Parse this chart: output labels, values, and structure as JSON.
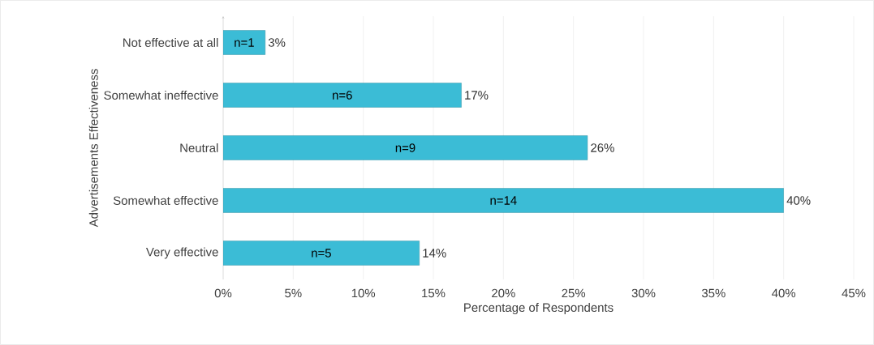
{
  "chart_data": {
    "type": "bar",
    "orientation": "horizontal",
    "xlabel": "Percentage of Respondents",
    "ylabel": "Advertisements Effectiveness",
    "categories": [
      "Not effective at all",
      "Somewhat ineffective",
      "Neutral",
      "Somewhat effective",
      "Very effective"
    ],
    "values": [
      3,
      17,
      26,
      40,
      14
    ],
    "color": "#3bbcd6",
    "value_labels": [
      "3%",
      "17%",
      "26%",
      "40%",
      "14%"
    ],
    "annotations": [
      "n=1",
      "n=6",
      "n=9",
      "n=14",
      "n=5"
    ],
    "xlim": [
      0,
      45
    ],
    "xticks": [
      {
        "value": 0,
        "label": "0%"
      },
      {
        "value": 5,
        "label": "5%"
      },
      {
        "value": 10,
        "label": "10%"
      },
      {
        "value": 15,
        "label": "15%"
      },
      {
        "value": 20,
        "label": "20%"
      },
      {
        "value": 25,
        "label": "25%"
      },
      {
        "value": 30,
        "label": "30%"
      },
      {
        "value": 35,
        "label": "35%"
      },
      {
        "value": 40,
        "label": "40%"
      },
      {
        "value": 45,
        "label": "45%"
      }
    ],
    "grid": "x"
  }
}
